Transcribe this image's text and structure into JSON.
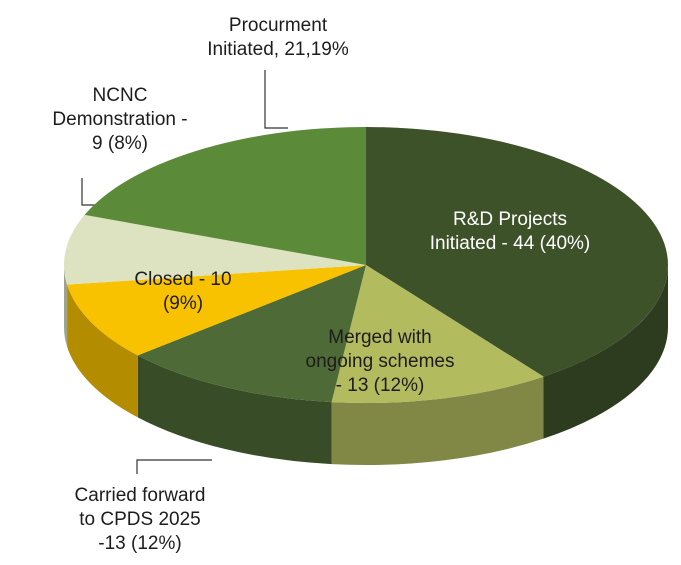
{
  "chart_data": {
    "type": "pie3d",
    "categories": [
      "R&D Projects Initiated",
      "Merged with ongoing schemes",
      "Carried forward to CPDS 2025",
      "Closed",
      "NCNC Demonstration",
      "Procurment Initiated"
    ],
    "values": [
      44,
      13,
      13,
      10,
      9,
      21
    ],
    "value_labels": [
      [
        "R&D Projects",
        "Initiated - 44 (40%)"
      ],
      [
        "Merged with",
        "ongoing schemes",
        "- 13 (12%)"
      ],
      [
        "Carried forward",
        "to CPDS 2025",
        "-13 (12%)"
      ],
      [
        "Closed - 10",
        "(9%)"
      ],
      [
        "NCNC",
        "Demonstration -",
        "9 (8%)"
      ],
      [
        "Procurment",
        "Initiated, 21,19%"
      ]
    ],
    "colors": [
      "#3e5229",
      "#b3bb5f",
      "#4e6a36",
      "#f8c200",
      "#dde2c1",
      "#5b8a38"
    ]
  }
}
